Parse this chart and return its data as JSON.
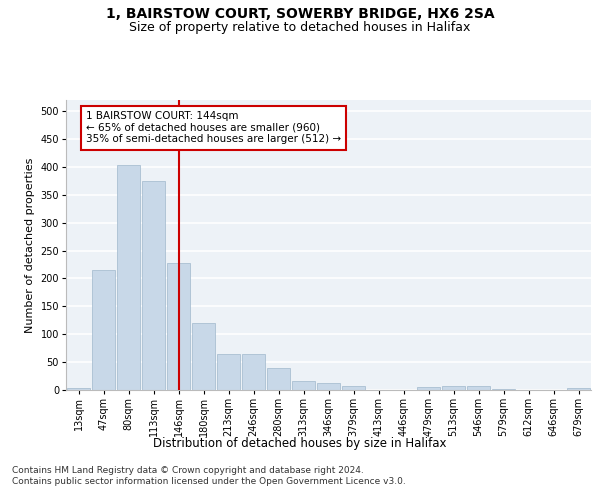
{
  "title": "1, BAIRSTOW COURT, SOWERBY BRIDGE, HX6 2SA",
  "subtitle": "Size of property relative to detached houses in Halifax",
  "xlabel": "Distribution of detached houses by size in Halifax",
  "ylabel": "Number of detached properties",
  "categories": [
    "13sqm",
    "47sqm",
    "80sqm",
    "113sqm",
    "146sqm",
    "180sqm",
    "213sqm",
    "246sqm",
    "280sqm",
    "313sqm",
    "346sqm",
    "379sqm",
    "413sqm",
    "446sqm",
    "479sqm",
    "513sqm",
    "546sqm",
    "579sqm",
    "612sqm",
    "646sqm",
    "679sqm"
  ],
  "bar_heights": [
    4,
    215,
    403,
    375,
    228,
    120,
    65,
    65,
    40,
    17,
    13,
    7,
    0,
    0,
    6,
    7,
    7,
    2,
    0,
    0,
    4
  ],
  "bar_color": "#c8d8e8",
  "bar_edge_color": "#a0b8cc",
  "background_color": "#edf2f7",
  "grid_color": "#ffffff",
  "vline_x_index": 4,
  "vline_color": "#cc0000",
  "annotation_line1": "1 BAIRSTOW COURT: 144sqm",
  "annotation_line2": "← 65% of detached houses are smaller (960)",
  "annotation_line3": "35% of semi-detached houses are larger (512) →",
  "annotation_box_color": "#cc0000",
  "ylim": [
    0,
    520
  ],
  "yticks": [
    0,
    50,
    100,
    150,
    200,
    250,
    300,
    350,
    400,
    450,
    500
  ],
  "footer_line1": "Contains HM Land Registry data © Crown copyright and database right 2024.",
  "footer_line2": "Contains public sector information licensed under the Open Government Licence v3.0.",
  "title_fontsize": 10,
  "subtitle_fontsize": 9,
  "xlabel_fontsize": 8.5,
  "ylabel_fontsize": 8,
  "tick_fontsize": 7,
  "annotation_fontsize": 7.5,
  "footer_fontsize": 6.5
}
